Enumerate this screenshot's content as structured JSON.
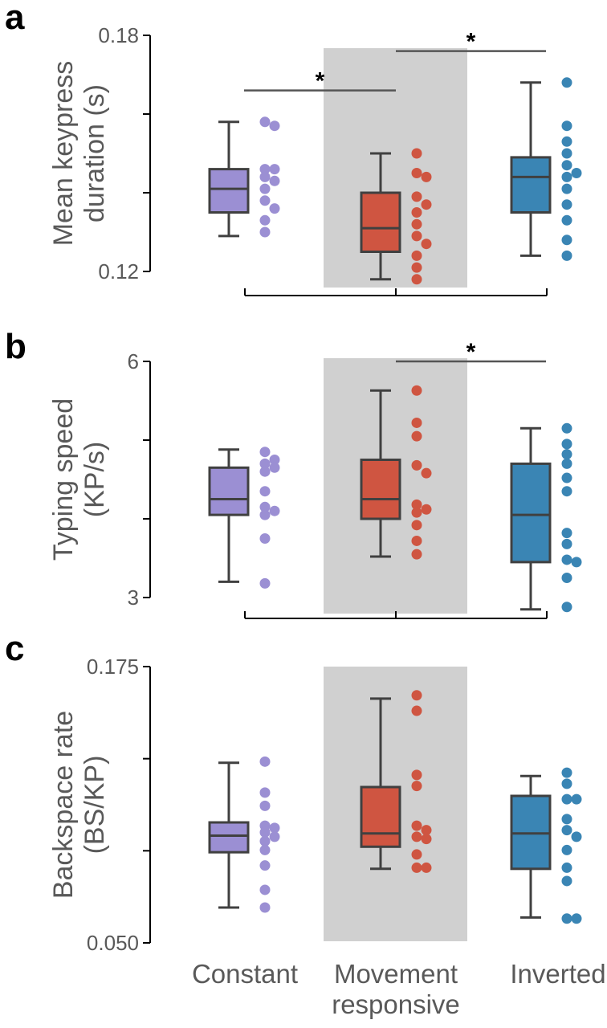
{
  "colors": {
    "constant": "#9b8fd3",
    "movement_responsive": "#cf5541",
    "inverted": "#3a85b4",
    "box_edge": "#404040",
    "shade": "#d0d0d0"
  },
  "chart_data": [
    {
      "type": "box",
      "panel": "a",
      "ylabel": [
        "Mean keypress",
        "duration (s)"
      ],
      "ylim": [
        0.12,
        0.18
      ],
      "yticks": [
        "0.18",
        "0.12"
      ],
      "categories": [
        "Constant",
        "Movement",
        "Inverted"
      ],
      "shaded_category": "Movement",
      "boxes": [
        {
          "whisker_low": 0.129,
          "q1": 0.135,
          "median": 0.141,
          "q3": 0.146,
          "whisker_high": 0.158
        },
        {
          "whisker_low": 0.118,
          "q1": 0.125,
          "median": 0.131,
          "q3": 0.14,
          "whisker_high": 0.15
        },
        {
          "whisker_low": 0.124,
          "q1": 0.135,
          "median": 0.144,
          "q3": 0.149,
          "whisker_high": 0.168
        }
      ],
      "points": [
        [
          0.158,
          0.157,
          0.146,
          0.146,
          0.144,
          0.143,
          0.141,
          0.138,
          0.136,
          0.133,
          0.13
        ],
        [
          0.15,
          0.145,
          0.144,
          0.139,
          0.137,
          0.135,
          0.132,
          0.129,
          0.127,
          0.124,
          0.121,
          0.118
        ],
        [
          0.168,
          0.157,
          0.153,
          0.15,
          0.147,
          0.145,
          0.144,
          0.141,
          0.137,
          0.133,
          0.128,
          0.124
        ]
      ],
      "significance": [
        {
          "from": 0,
          "to": 1,
          "y": 0.166,
          "label": "*"
        },
        {
          "from": 1,
          "to": 2,
          "y": 0.176,
          "label": "*"
        }
      ]
    },
    {
      "type": "box",
      "panel": "b",
      "ylabel": [
        "Typing speed",
        "(KP/s)"
      ],
      "ylim": [
        3,
        6
      ],
      "yticks": [
        "6",
        "3"
      ],
      "categories": [
        "Constant",
        "Movement",
        "Inverted"
      ],
      "shaded_category": "Movement",
      "boxes": [
        {
          "whisker_low": 3.2,
          "q1": 4.05,
          "median": 4.25,
          "q3": 4.65,
          "whisker_high": 4.88
        },
        {
          "whisker_low": 3.52,
          "q1": 4.0,
          "median": 4.25,
          "q3": 4.75,
          "whisker_high": 5.63
        },
        {
          "whisker_low": 2.85,
          "q1": 3.45,
          "median": 4.05,
          "q3": 4.7,
          "whisker_high": 5.15
        }
      ],
      "points": [
        [
          4.85,
          4.75,
          4.7,
          4.65,
          4.6,
          4.35,
          4.15,
          4.1,
          4.05,
          3.75,
          3.18
        ],
        [
          5.63,
          5.22,
          5.05,
          4.68,
          4.58,
          4.18,
          4.12,
          4.08,
          3.92,
          3.72,
          3.55
        ],
        [
          5.15,
          4.95,
          4.82,
          4.7,
          4.52,
          4.35,
          3.82,
          3.68,
          3.48,
          3.45,
          3.25,
          2.88
        ]
      ],
      "significance": [
        {
          "from": 1,
          "to": 2,
          "y": 6.0,
          "label": "*"
        }
      ]
    },
    {
      "type": "box",
      "panel": "c",
      "ylabel": [
        "Backspace rate",
        "(BS/KP)"
      ],
      "ylim": [
        0.05,
        0.175
      ],
      "yticks": [
        "0.175",
        "0.050"
      ],
      "categories": [
        "Constant",
        "Movement",
        "Inverted"
      ],
      "shaded_category": "Movement",
      "boxes": [
        {
          "whisker_low": 0.066,
          "q1": 0.091,
          "median": 0.0985,
          "q3": 0.1045,
          "whisker_high": 0.1315
        },
        {
          "whisker_low": 0.0835,
          "q1": 0.0935,
          "median": 0.0995,
          "q3": 0.1205,
          "whisker_high": 0.1605
        },
        {
          "whisker_low": 0.0615,
          "q1": 0.0835,
          "median": 0.0995,
          "q3": 0.1165,
          "whisker_high": 0.1255
        }
      ],
      "points": [
        [
          0.132,
          0.118,
          0.112,
          0.103,
          0.102,
          0.1,
          0.098,
          0.096,
          0.092,
          0.085,
          0.074,
          0.066
        ],
        [
          0.162,
          0.155,
          0.126,
          0.121,
          0.103,
          0.101,
          0.098,
          0.097,
          0.09,
          0.084,
          0.084
        ],
        [
          0.127,
          0.122,
          0.115,
          0.115,
          0.106,
          0.101,
          0.098,
          0.092,
          0.084,
          0.078,
          0.061,
          0.061
        ]
      ],
      "significance": []
    }
  ],
  "x_labels": [
    {
      "lines": [
        "Constant"
      ]
    },
    {
      "lines": [
        "Movement",
        "responsive"
      ]
    },
    {
      "lines": [
        "Inverted"
      ]
    }
  ]
}
